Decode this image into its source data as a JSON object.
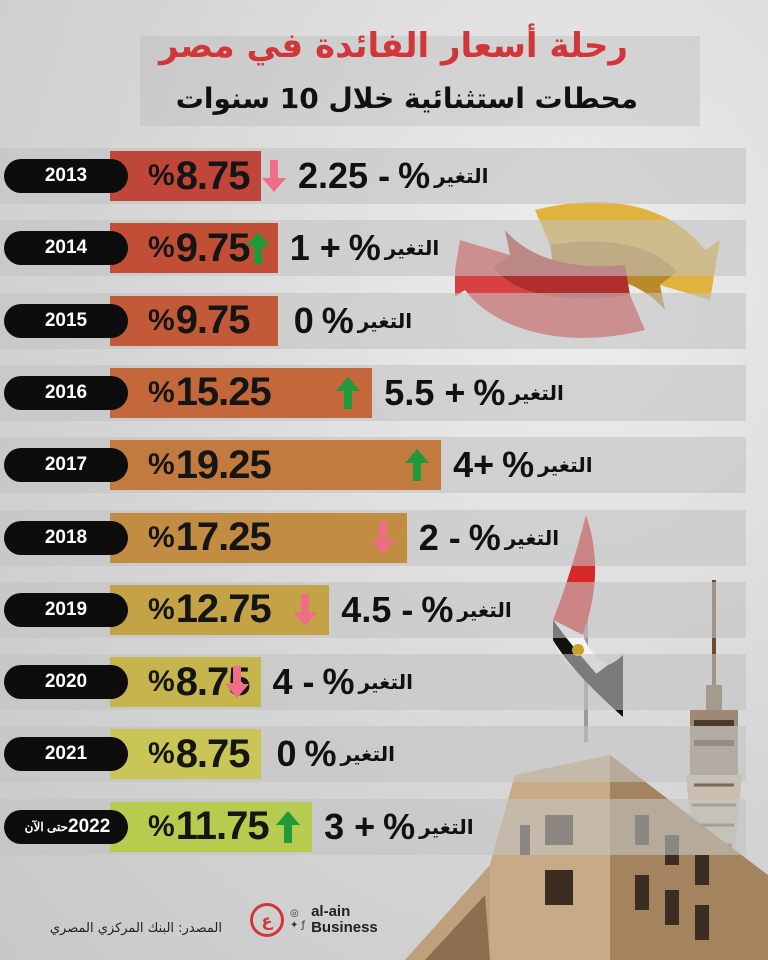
{
  "header": {
    "title": "رحلة أسعار الفائدة في مصر",
    "subtitle": "محطات استثنائية خلال 10 سنوات"
  },
  "chart_data": {
    "type": "bar",
    "title": "رحلة أسعار الفائدة في مصر",
    "subtitle": "محطات استثنائية خلال 10 سنوات",
    "change_label": "التغير",
    "categories": [
      "2013",
      "2014",
      "2015",
      "2016",
      "2017",
      "2018",
      "2019",
      "2020",
      "2021",
      "2022"
    ],
    "year_notes": [
      "",
      "",
      "",
      "",
      "",
      "",
      "",
      "",
      "",
      "حتى الآن"
    ],
    "values": [
      8.75,
      9.75,
      9.75,
      15.25,
      19.25,
      17.25,
      12.75,
      8.75,
      8.75,
      11.75
    ],
    "value_labels": [
      "8.75",
      "9.75",
      "9.75",
      "15.25",
      "19.25",
      "17.25",
      "12.75",
      "8.75",
      "8.75",
      "11.75"
    ],
    "changes": [
      "- 2.25",
      "+ 1",
      "0",
      "+ 5.5",
      "+4",
      "- 2",
      "- 4.5",
      "- 4",
      "0",
      "+ 3"
    ],
    "change_direction": [
      "down",
      "up",
      "none",
      "up",
      "up",
      "down",
      "down",
      "down",
      "none",
      "up"
    ],
    "bar_colors": [
      "#c0463a",
      "#c34e36",
      "#c35a37",
      "#c4673a",
      "#c27a3e",
      "#c28c42",
      "#c4a347",
      "#c6b54d",
      "#c9c655",
      "#b7cc4f"
    ],
    "unit": "%",
    "xlim": [
      0,
      20
    ]
  },
  "colors": {
    "title_red": "#d0363a",
    "arrow_up": "#1e9a3a",
    "arrow_down": "#ef6d86",
    "year_pill": "#0d0d0d"
  },
  "footer": {
    "source": "المصدر: البنك المركزي المصري",
    "logo_text_1": "al-ain",
    "logo_text_2": "Business",
    "logo_icon": "al-ain-logo-icon",
    "social_icons": [
      "instagram-icon",
      "twitter-icon",
      "facebook-icon"
    ]
  }
}
